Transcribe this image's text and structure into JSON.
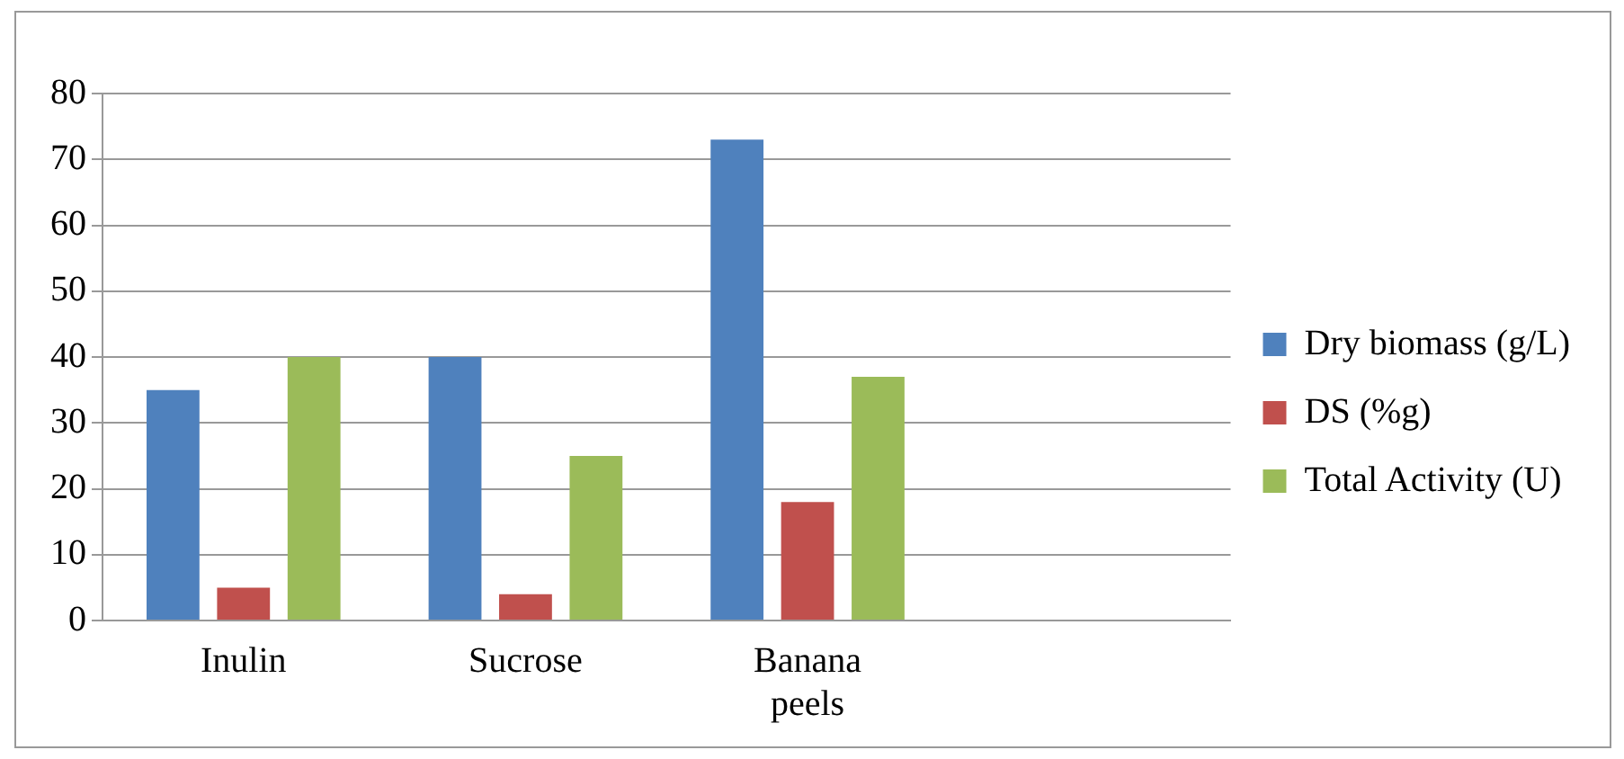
{
  "chart_data": {
    "type": "bar",
    "categories": [
      "Inulin",
      "Sucrose",
      "Banana peels",
      null
    ],
    "series": [
      {
        "name": "Dry biomass (g/L)",
        "color": "#4f81bd",
        "values": [
          35,
          40,
          73,
          null
        ]
      },
      {
        "name": "DS (%g)",
        "color": "#c0504d",
        "values": [
          5,
          4,
          18,
          null
        ]
      },
      {
        "name": "Total Activity (U)",
        "color": "#9bbb59",
        "values": [
          40,
          25,
          37,
          null
        ]
      }
    ],
    "ylim": [
      0,
      80
    ],
    "yticks": [
      0,
      10,
      20,
      30,
      40,
      50,
      60,
      70,
      80
    ],
    "grid": "y",
    "legend": "right"
  }
}
